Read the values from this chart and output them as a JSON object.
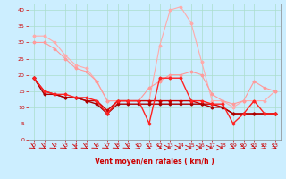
{
  "xlabel": "Vent moyen/en rafales ( km/h )",
  "background_color": "#cceeff",
  "grid_color": "#aaddcc",
  "xlim": [
    -0.5,
    23.5
  ],
  "ylim": [
    0,
    42
  ],
  "yticks": [
    0,
    5,
    10,
    15,
    20,
    25,
    30,
    35,
    40
  ],
  "xticks": [
    0,
    1,
    2,
    3,
    4,
    5,
    6,
    7,
    8,
    9,
    10,
    11,
    12,
    13,
    14,
    15,
    16,
    17,
    18,
    19,
    20,
    21,
    22,
    23
  ],
  "series": [
    {
      "x": [
        0,
        1,
        2,
        3,
        4,
        5,
        6,
        7,
        8,
        9,
        10,
        11,
        12,
        13,
        14,
        15,
        16,
        17,
        18,
        19,
        20,
        21,
        22,
        23
      ],
      "y": [
        32,
        32,
        30,
        26,
        23,
        22,
        18,
        12,
        12,
        12,
        12,
        12,
        29,
        40,
        41,
        36,
        24,
        12,
        12,
        10,
        12,
        12,
        12,
        15
      ],
      "color": "#ffaaaa",
      "linewidth": 0.8,
      "marker": "D",
      "markersize": 1.5,
      "zorder": 2
    },
    {
      "x": [
        0,
        1,
        2,
        3,
        4,
        5,
        6,
        7,
        8,
        9,
        10,
        11,
        12,
        13,
        14,
        15,
        16,
        17,
        18,
        19,
        20,
        21,
        22,
        23
      ],
      "y": [
        30,
        30,
        28,
        25,
        22,
        21,
        18,
        12,
        12,
        12,
        12,
        16,
        18,
        20,
        20,
        21,
        20,
        14,
        12,
        11,
        12,
        18,
        16,
        15
      ],
      "color": "#ff9999",
      "linewidth": 0.8,
      "marker": "D",
      "markersize": 1.5,
      "zorder": 3
    },
    {
      "x": [
        0,
        1,
        2,
        3,
        4,
        5,
        6,
        7,
        8,
        9,
        10,
        11,
        12,
        13,
        14,
        15,
        16,
        17,
        18,
        19,
        20,
        21,
        22,
        23
      ],
      "y": [
        19,
        15,
        14,
        14,
        13,
        13,
        12,
        8,
        12,
        12,
        12,
        5,
        19,
        19,
        19,
        12,
        12,
        11,
        11,
        5,
        8,
        12,
        8,
        8
      ],
      "color": "#ff2222",
      "linewidth": 1.0,
      "marker": "D",
      "markersize": 1.5,
      "zorder": 5
    },
    {
      "x": [
        0,
        1,
        2,
        3,
        4,
        5,
        6,
        7,
        8,
        9,
        10,
        11,
        12,
        13,
        14,
        15,
        16,
        17,
        18,
        19,
        20,
        21,
        22,
        23
      ],
      "y": [
        19,
        15,
        14,
        13,
        13,
        12,
        12,
        9,
        12,
        12,
        12,
        12,
        12,
        12,
        12,
        12,
        11,
        11,
        10,
        8,
        8,
        8,
        8,
        8
      ],
      "color": "#cc0000",
      "linewidth": 1.0,
      "marker": "D",
      "markersize": 1.5,
      "zorder": 4
    },
    {
      "x": [
        0,
        1,
        2,
        3,
        4,
        5,
        6,
        7,
        8,
        9,
        10,
        11,
        12,
        13,
        14,
        15,
        16,
        17,
        18,
        19,
        20,
        21,
        22,
        23
      ],
      "y": [
        19,
        14,
        14,
        13,
        13,
        12,
        11,
        8,
        11,
        11,
        11,
        11,
        11,
        11,
        11,
        11,
        11,
        10,
        10,
        8,
        8,
        8,
        8,
        8
      ],
      "color": "#aa0000",
      "linewidth": 1.0,
      "marker": "D",
      "markersize": 1.5,
      "zorder": 4
    }
  ],
  "arrow_angles": [
    30,
    30,
    30,
    30,
    45,
    30,
    30,
    30,
    30,
    30,
    45,
    45,
    60,
    90,
    90,
    90,
    90,
    90,
    90,
    45,
    45,
    45,
    45,
    45
  ]
}
